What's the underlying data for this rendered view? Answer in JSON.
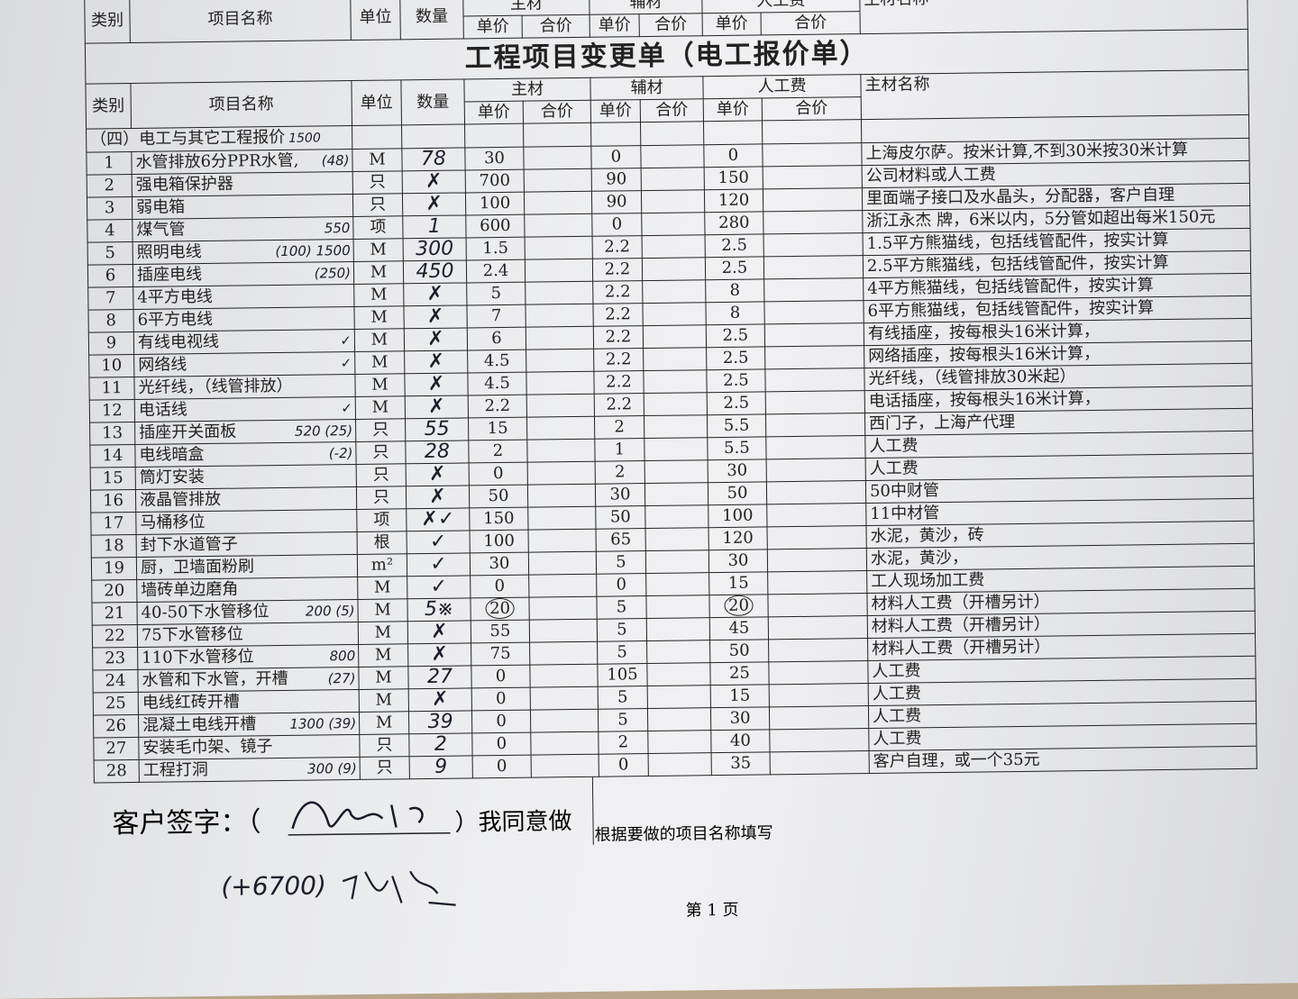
{
  "title": "工程项目变更单（电工报价单）",
  "headers": {
    "category": "类别",
    "item_name": "项目名称",
    "unit": "单位",
    "quantity": "数量",
    "main_material": "主材",
    "aux_material": "辅材",
    "labor": "人工费",
    "unit_price": "单价",
    "total_price": "合价",
    "main_material_name": "主材名称"
  },
  "section_title": "（四）电工与其它工程报价",
  "section_annotation": "1500",
  "rows": [
    {
      "no": "1",
      "name": "水管排放6分PPR水管,",
      "annot": "(48)",
      "unit": "M",
      "qty": "78",
      "main": "30",
      "aux": "0",
      "labor": "0",
      "note": "上海皮尔萨。按米计算,不到30米按30米计算"
    },
    {
      "no": "2",
      "name": "强电箱保护器",
      "annot": "",
      "unit": "只",
      "qty": "✗",
      "main": "700",
      "aux": "90",
      "labor": "150",
      "note": "公司材料或人工费"
    },
    {
      "no": "3",
      "name": "弱电箱",
      "annot": "",
      "unit": "只",
      "qty": "✗",
      "main": "100",
      "aux": "90",
      "labor": "120",
      "note": "里面端子接口及水晶头，分配器，客户自理"
    },
    {
      "no": "4",
      "name": "煤气管",
      "annot": "550",
      "unit": "项",
      "qty": "1",
      "main": "600",
      "aux": "0",
      "labor": "280",
      "note": "浙江永杰 牌，6米以内，5分管如超出每米150元"
    },
    {
      "no": "5",
      "name": "照明电线",
      "annot": "(100) 1500",
      "unit": "M",
      "qty": "300",
      "main": "1.5",
      "aux": "2.2",
      "labor": "2.5",
      "note": "1.5平方熊猫线，包括线管配件，按实计算"
    },
    {
      "no": "6",
      "name": "插座电线",
      "annot": "(250)",
      "unit": "M",
      "qty": "450",
      "main": "2.4",
      "aux": "2.2",
      "labor": "2.5",
      "note": "2.5平方熊猫线，包括线管配件，按实计算"
    },
    {
      "no": "7",
      "name": "4平方电线",
      "annot": "",
      "unit": "M",
      "qty": "✗",
      "main": "5",
      "aux": "2.2",
      "labor": "8",
      "note": "4平方熊猫线，包括线管配件，按实计算"
    },
    {
      "no": "8",
      "name": "6平方电线",
      "annot": "",
      "unit": "M",
      "qty": "✗",
      "main": "7",
      "aux": "2.2",
      "labor": "8",
      "note": "6平方熊猫线，包括线管配件，按实计算"
    },
    {
      "no": "9",
      "name": "有线电视线",
      "annot": "✓",
      "unit": "M",
      "qty": "✗",
      "main": "6",
      "aux": "2.2",
      "labor": "2.5",
      "note": "有线插座，按每根头16米计算，"
    },
    {
      "no": "10",
      "name": "网络线",
      "annot": "✓",
      "unit": "M",
      "qty": "✗",
      "main": "4.5",
      "aux": "2.2",
      "labor": "2.5",
      "note": "网络插座，按每根头16米计算，"
    },
    {
      "no": "11",
      "name": "光纤线，（线管排放）",
      "annot": "",
      "unit": "M",
      "qty": "✗",
      "main": "4.5",
      "aux": "2.2",
      "labor": "2.5",
      "note": "光纤线，（线管排放30米起）"
    },
    {
      "no": "12",
      "name": "电话线",
      "annot": "✓",
      "unit": "M",
      "qty": "✗",
      "main": "2.2",
      "aux": "2.2",
      "labor": "2.5",
      "note": "电话插座，按每根头16米计算，"
    },
    {
      "no": "13",
      "name": "插座开关面板",
      "annot": "520 (25)",
      "unit": "只",
      "qty": "55",
      "main": "15",
      "aux": "2",
      "labor": "5.5",
      "note": "西门子，上海产代理"
    },
    {
      "no": "14",
      "name": "电线暗盒",
      "annot": "(-2)",
      "unit": "只",
      "qty": "28",
      "main": "2",
      "aux": "1",
      "labor": "5.5",
      "note": "人工费"
    },
    {
      "no": "15",
      "name": "筒灯安装",
      "annot": "",
      "unit": "只",
      "qty": "✗",
      "main": "0",
      "aux": "2",
      "labor": "30",
      "note": "人工费"
    },
    {
      "no": "16",
      "name": "液晶管排放",
      "annot": "",
      "unit": "只",
      "qty": "✗",
      "main": "50",
      "aux": "30",
      "labor": "50",
      "note": "50中财管"
    },
    {
      "no": "17",
      "name": "马桶移位",
      "annot": "",
      "unit": "项",
      "qty": "✗✓",
      "main": "150",
      "aux": "50",
      "labor": "100",
      "note": "11中材管"
    },
    {
      "no": "18",
      "name": "封下水道管子",
      "annot": "",
      "unit": "根",
      "qty": "✓",
      "main": "100",
      "aux": "65",
      "labor": "120",
      "note": "水泥，黄沙，砖"
    },
    {
      "no": "19",
      "name": "厨，卫墙面粉刷",
      "annot": "",
      "unit": "m²",
      "qty": "✓",
      "main": "30",
      "aux": "5",
      "labor": "30",
      "note": "水泥，黄沙，"
    },
    {
      "no": "20",
      "name": "墙砖单边磨角",
      "annot": "",
      "unit": "M",
      "qty": "✓",
      "main": "0",
      "aux": "0",
      "labor": "15",
      "note": "工人现场加工费"
    },
    {
      "no": "21",
      "name": "40-50下水管移位",
      "annot": "200 (5)",
      "unit": "M",
      "qty": "5※",
      "main": "20",
      "aux": "5",
      "labor": "20",
      "note": "材料人工费（开槽另计）",
      "circled": true
    },
    {
      "no": "22",
      "name": "75下水管移位",
      "annot": "",
      "unit": "M",
      "qty": "✗",
      "main": "55",
      "aux": "5",
      "labor": "45",
      "note": "材料人工费（开槽另计）"
    },
    {
      "no": "23",
      "name": "110下水管移位",
      "annot": "800",
      "unit": "M",
      "qty": "✗",
      "main": "75",
      "aux": "5",
      "labor": "50",
      "note": "材料人工费（开槽另计）"
    },
    {
      "no": "24",
      "name": "水管和下水管，开槽",
      "annot": "(27)",
      "unit": "M",
      "qty": "27",
      "main": "0",
      "aux": "105",
      "labor": "25",
      "note": "人工费"
    },
    {
      "no": "25",
      "name": "电线红砖开槽",
      "annot": "",
      "unit": "M",
      "qty": "✗",
      "main": "0",
      "aux": "5",
      "labor": "15",
      "note": "人工费"
    },
    {
      "no": "26",
      "name": "混凝土电线开槽",
      "annot": "1300 (39)",
      "unit": "M",
      "qty": "39",
      "main": "0",
      "aux": "5",
      "labor": "30",
      "note": "人工费"
    },
    {
      "no": "27",
      "name": "安装毛巾架、镜子",
      "annot": "",
      "unit": "只",
      "qty": "2",
      "main": "0",
      "aux": "2",
      "labor": "40",
      "note": "人工费"
    },
    {
      "no": "28",
      "name": "工程打洞",
      "annot": "300 (9)",
      "unit": "只",
      "qty": "9",
      "main": "0",
      "aux": "0",
      "labor": "35",
      "note": "客户自理，或一个35元"
    }
  ],
  "footer": {
    "customer_sign_label": "客户签字：（",
    "agree_text": "）我同意做",
    "fill_hint": "根据要做的项目名称填写",
    "handwritten_extra": "(+6700)",
    "page_label": "第 1 页"
  }
}
